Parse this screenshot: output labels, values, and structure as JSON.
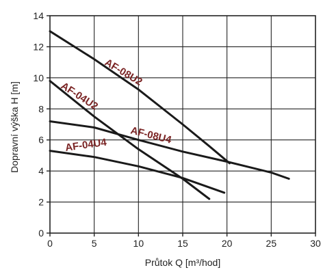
{
  "chart_data": {
    "type": "line",
    "xlabel": "Průtok Q [m³/hod]",
    "ylabel": "Dopravní výška H [m]",
    "xlim": [
      0,
      30
    ],
    "ylim": [
      0,
      14
    ],
    "x_ticks": [
      "0",
      "5",
      "10",
      "15",
      "20",
      "25",
      "30"
    ],
    "y_ticks": [
      "0",
      "2",
      "4",
      "6",
      "8",
      "10",
      "12",
      "14"
    ],
    "grid": true,
    "series": [
      {
        "name": "AF-08U2",
        "points": [
          [
            0,
            13.0
          ],
          [
            5,
            11.2
          ],
          [
            10,
            9.25
          ],
          [
            15,
            7.0
          ],
          [
            18,
            5.6
          ],
          [
            20.3,
            4.5
          ]
        ]
      },
      {
        "name": "AF-04U2",
        "points": [
          [
            0,
            9.8
          ],
          [
            5,
            7.5
          ],
          [
            10,
            5.4
          ],
          [
            15,
            3.5
          ],
          [
            18,
            2.2
          ]
        ]
      },
      {
        "name": "AF-08U4",
        "points": [
          [
            0,
            7.2
          ],
          [
            5,
            6.8
          ],
          [
            10,
            6.0
          ],
          [
            15,
            5.25
          ],
          [
            20,
            4.6
          ],
          [
            25,
            3.9
          ],
          [
            27,
            3.5
          ]
        ]
      },
      {
        "name": "AF-04U4",
        "points": [
          [
            0,
            5.3
          ],
          [
            5,
            4.9
          ],
          [
            10,
            4.3
          ],
          [
            15,
            3.55
          ],
          [
            19.7,
            2.6
          ]
        ]
      }
    ]
  }
}
